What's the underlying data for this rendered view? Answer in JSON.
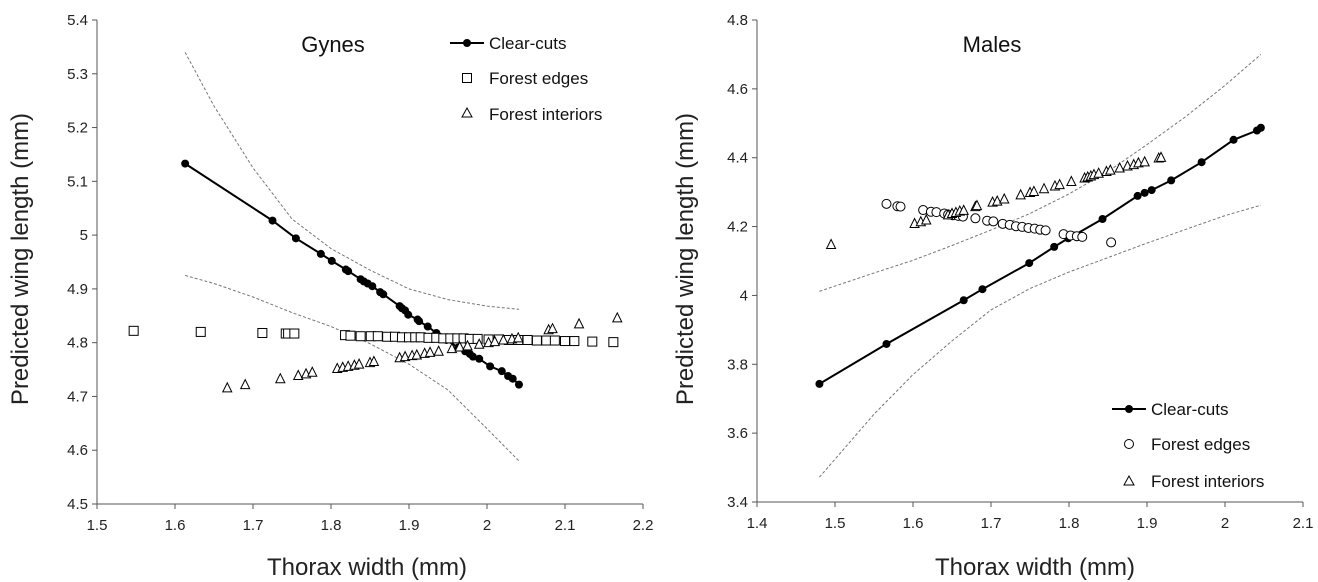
{
  "chart_data": [
    {
      "type": "scatter",
      "title": "Gynes",
      "xlabel": "Thorax width (mm)",
      "ylabel": "Predicted wing length (mm)",
      "xlim": [
        1.5,
        2.2
      ],
      "ylim": [
        4.5,
        5.4
      ],
      "xticks": [
        "1.5",
        "1.6",
        "1.7",
        "1.8",
        "1.9",
        "2",
        "2.1",
        "2.2"
      ],
      "yticks": [
        "4.5",
        "4.6",
        "4.7",
        "4.8",
        "4.9",
        "5",
        "5.1",
        "5.2",
        "5.3",
        "5.4"
      ],
      "legend_position": "top-right",
      "grid": false,
      "series": [
        {
          "name": "Clear-cuts",
          "marker": "filled-circle",
          "line": true,
          "x": [
            1.613,
            1.725,
            1.755,
            1.787,
            1.801,
            1.819,
            1.822,
            1.838,
            1.842,
            1.847,
            1.853,
            1.863,
            1.867,
            1.888,
            1.891,
            1.895,
            1.899,
            1.911,
            1.913,
            1.924,
            1.935,
            1.948,
            1.963,
            1.972,
            1.978,
            1.982,
            1.99,
            2.004,
            2.019,
            2.027,
            2.033,
            2.041
          ],
          "y": [
            5.133,
            5.027,
            4.994,
            4.965,
            4.952,
            4.936,
            4.933,
            4.918,
            4.914,
            4.91,
            4.905,
            4.894,
            4.89,
            4.868,
            4.864,
            4.86,
            4.852,
            4.843,
            4.84,
            4.83,
            4.818,
            4.805,
            4.791,
            4.784,
            4.779,
            4.774,
            4.77,
            4.756,
            4.747,
            4.738,
            4.733,
            4.722
          ]
        },
        {
          "name": "Forest edges",
          "marker": "open-square",
          "line": false,
          "x": [
            1.547,
            1.633,
            1.712,
            1.742,
            1.745,
            1.753,
            1.818,
            1.825,
            1.838,
            1.851,
            1.86,
            1.872,
            1.882,
            1.891,
            1.9,
            1.908,
            1.915,
            1.925,
            1.935,
            1.944,
            1.953,
            1.962,
            1.97,
            1.978,
            1.988,
            2.002,
            2.015,
            2.028,
            2.04,
            2.052,
            2.064,
            2.076,
            2.087,
            2.1,
            2.112,
            2.135,
            2.162
          ],
          "y": [
            4.822,
            4.82,
            4.818,
            4.817,
            4.817,
            4.817,
            4.814,
            4.813,
            4.812,
            4.812,
            4.812,
            4.811,
            4.811,
            4.81,
            4.81,
            4.81,
            4.81,
            4.809,
            4.809,
            4.808,
            4.808,
            4.808,
            4.808,
            4.807,
            4.807,
            4.806,
            4.806,
            4.805,
            4.805,
            4.805,
            4.804,
            4.804,
            4.804,
            4.803,
            4.803,
            4.802,
            4.801
          ]
        },
        {
          "name": "Forest interiors",
          "marker": "open-triangle",
          "line": false,
          "x": [
            1.667,
            1.69,
            1.735,
            1.758,
            1.768,
            1.776,
            1.808,
            1.815,
            1.822,
            1.83,
            1.836,
            1.85,
            1.855,
            1.888,
            1.895,
            1.904,
            1.91,
            1.92,
            1.927,
            1.938,
            1.955,
            1.965,
            1.975,
            1.99,
            2.002,
            2.01,
            2.021,
            2.032,
            2.04,
            2.079,
            2.084,
            2.118,
            2.167
          ],
          "y": [
            4.716,
            4.722,
            4.733,
            4.739,
            4.742,
            4.745,
            4.752,
            4.754,
            4.756,
            4.758,
            4.76,
            4.763,
            4.765,
            4.772,
            4.774,
            4.776,
            4.777,
            4.78,
            4.782,
            4.784,
            4.789,
            4.792,
            4.794,
            4.797,
            4.8,
            4.802,
            4.805,
            4.807,
            4.809,
            4.824,
            4.826,
            4.835,
            4.846
          ]
        }
      ],
      "confidence_band": {
        "upper": {
          "x": [
            1.613,
            1.65,
            1.7,
            1.75,
            1.8,
            1.85,
            1.9,
            1.95,
            2.0,
            2.041
          ],
          "y": [
            5.34,
            5.24,
            5.125,
            5.03,
            4.975,
            4.935,
            4.9,
            4.88,
            4.868,
            4.862
          ]
        },
        "lower": {
          "x": [
            1.613,
            1.65,
            1.7,
            1.75,
            1.8,
            1.85,
            1.9,
            1.95,
            2.0,
            2.041
          ],
          "y": [
            4.925,
            4.91,
            4.885,
            4.856,
            4.83,
            4.798,
            4.76,
            4.712,
            4.64,
            4.58
          ]
        }
      }
    },
    {
      "type": "scatter",
      "title": "Males",
      "xlabel": "Thorax width (mm)",
      "ylabel": "Predicted wing length (mm)",
      "xlim": [
        1.4,
        2.1
      ],
      "ylim": [
        3.4,
        4.8
      ],
      "xticks": [
        "1.4",
        "1.5",
        "1.6",
        "1.7",
        "1.8",
        "1.9",
        "2",
        "2.1"
      ],
      "yticks": [
        "3.4",
        "3.6",
        "3.8",
        "4",
        "4.2",
        "4.4",
        "4.6",
        "4.8"
      ],
      "legend_position": "bottom-right",
      "grid": false,
      "series": [
        {
          "name": "Clear-cuts",
          "marker": "filled-circle",
          "line": true,
          "x": [
            1.48,
            1.566,
            1.665,
            1.689,
            1.749,
            1.781,
            1.799,
            1.806,
            1.843,
            1.888,
            1.897,
            1.906,
            1.931,
            1.97,
            2.011,
            2.041,
            2.046
          ],
          "y": [
            3.743,
            3.859,
            3.986,
            4.018,
            4.094,
            4.141,
            4.166,
            4.174,
            4.222,
            4.289,
            4.298,
            4.306,
            4.334,
            4.387,
            4.452,
            4.479,
            4.487
          ]
        },
        {
          "name": "Forest edges",
          "marker": "open-circle",
          "line": false,
          "x": [
            1.566,
            1.58,
            1.584,
            1.613,
            1.623,
            1.63,
            1.64,
            1.645,
            1.651,
            1.658,
            1.664,
            1.68,
            1.695,
            1.703,
            1.715,
            1.724,
            1.732,
            1.74,
            1.748,
            1.756,
            1.763,
            1.77,
            1.793,
            1.802,
            1.81,
            1.817,
            1.854
          ],
          "y": [
            4.266,
            4.259,
            4.258,
            4.248,
            4.243,
            4.242,
            4.238,
            4.235,
            4.233,
            4.231,
            4.229,
            4.224,
            4.217,
            4.215,
            4.208,
            4.205,
            4.201,
            4.199,
            4.196,
            4.194,
            4.191,
            4.189,
            4.178,
            4.174,
            4.172,
            4.17,
            4.154
          ]
        },
        {
          "name": "Forest interiors",
          "marker": "open-triangle",
          "line": false,
          "x": [
            1.495,
            1.602,
            1.61,
            1.617,
            1.645,
            1.65,
            1.655,
            1.66,
            1.665,
            1.68,
            1.682,
            1.702,
            1.708,
            1.717,
            1.738,
            1.75,
            1.755,
            1.768,
            1.782,
            1.788,
            1.803,
            1.82,
            1.824,
            1.828,
            1.832,
            1.838,
            1.848,
            1.853,
            1.865,
            1.875,
            1.883,
            1.889,
            1.897,
            1.915,
            1.918
          ],
          "y": [
            4.148,
            4.209,
            4.214,
            4.219,
            4.234,
            4.238,
            4.241,
            4.245,
            4.247,
            4.258,
            4.261,
            4.271,
            4.274,
            4.28,
            4.292,
            4.299,
            4.302,
            4.31,
            4.318,
            4.322,
            4.331,
            4.341,
            4.344,
            4.347,
            4.351,
            4.355,
            4.36,
            4.364,
            4.37,
            4.376,
            4.38,
            4.385,
            4.388,
            4.399,
            4.401
          ]
        }
      ],
      "confidence_band": {
        "upper": {
          "x": [
            1.48,
            1.55,
            1.6,
            1.65,
            1.7,
            1.75,
            1.8,
            1.85,
            1.9,
            1.95,
            2.0,
            2.046
          ],
          "y": [
            4.012,
            4.065,
            4.102,
            4.145,
            4.19,
            4.238,
            4.295,
            4.36,
            4.438,
            4.52,
            4.61,
            4.7
          ]
        },
        "lower": {
          "x": [
            1.48,
            1.55,
            1.6,
            1.65,
            1.7,
            1.75,
            1.8,
            1.85,
            1.9,
            1.95,
            2.0,
            2.046
          ],
          "y": [
            3.472,
            3.655,
            3.77,
            3.868,
            3.958,
            4.02,
            4.068,
            4.11,
            4.152,
            4.192,
            4.232,
            4.262
          ]
        }
      }
    }
  ]
}
